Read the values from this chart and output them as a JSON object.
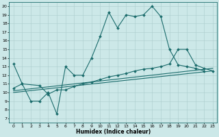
{
  "background_color": "#cce8e8",
  "grid_color": "#aacccc",
  "line_color": "#1a6b6b",
  "xlabel": "Humidex (Indice chaleur)",
  "xlim": [
    -0.5,
    23.5
  ],
  "ylim": [
    6.5,
    20.5
  ],
  "yticks": [
    7,
    8,
    9,
    10,
    11,
    12,
    13,
    14,
    15,
    16,
    17,
    18,
    19,
    20
  ],
  "xticks": [
    0,
    1,
    2,
    3,
    4,
    5,
    6,
    7,
    8,
    9,
    10,
    11,
    12,
    13,
    14,
    15,
    16,
    17,
    18,
    19,
    20,
    21,
    22,
    23
  ],
  "line1_x": [
    0,
    1,
    2,
    3,
    4,
    5,
    6,
    7,
    8,
    9,
    10,
    11,
    12,
    13,
    14,
    15,
    16,
    17,
    18,
    19,
    20,
    21,
    22
  ],
  "line1_y": [
    13.3,
    11.0,
    9.0,
    9.0,
    10.0,
    7.5,
    13.0,
    12.0,
    12.0,
    14.0,
    16.5,
    19.3,
    17.5,
    19.0,
    18.8,
    19.0,
    20.0,
    18.8,
    15.0,
    13.2,
    13.0,
    12.8,
    12.5
  ],
  "line2_x": [
    0,
    1,
    3,
    4,
    5,
    6,
    7,
    8,
    9,
    10,
    11,
    12,
    13,
    14,
    15,
    16,
    17,
    18,
    19,
    20,
    21,
    22,
    23
  ],
  "line2_y": [
    10.5,
    11.0,
    10.8,
    9.8,
    10.3,
    10.3,
    10.7,
    11.0,
    11.2,
    11.5,
    11.8,
    12.0,
    12.2,
    12.5,
    12.7,
    12.8,
    13.0,
    13.3,
    15.0,
    15.0,
    13.2,
    12.8,
    12.5
  ],
  "line3_x": [
    0,
    23
  ],
  "line3_y": [
    10.2,
    12.8
  ],
  "line4_x": [
    0,
    23
  ],
  "line4_y": [
    10.0,
    12.5
  ],
  "figsize": [
    3.2,
    2.0
  ],
  "dpi": 100,
  "lw": 0.8,
  "marker_size": 2.0
}
